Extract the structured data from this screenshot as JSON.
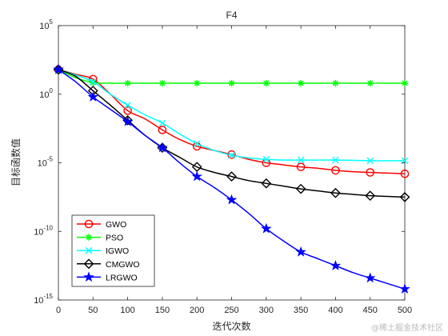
{
  "chart_data": {
    "type": "line",
    "title": "F4",
    "xlabel": "迭代次数",
    "ylabel": "目标函数值",
    "xlim": [
      0,
      500
    ],
    "ylim_log10": [
      -15,
      5
    ],
    "yscale": "log",
    "xticks": [
      0,
      50,
      100,
      150,
      200,
      250,
      300,
      350,
      400,
      450,
      500
    ],
    "yticks": [
      {
        "base": "10",
        "exp": "5",
        "value": 100000
      },
      {
        "base": "10",
        "exp": "0",
        "value": 1
      },
      {
        "base": "10",
        "exp": "-5",
        "value": 1e-05
      },
      {
        "base": "10",
        "exp": "-10",
        "value": 1e-10
      },
      {
        "base": "10",
        "exp": "-15",
        "value": 1e-15
      }
    ],
    "grid": false,
    "legend_position": "bottom-left",
    "series": [
      {
        "name": "GWO",
        "color": "#ff0000",
        "marker": "circle",
        "x": [
          0,
          25,
          50,
          75,
          100,
          125,
          150,
          175,
          200,
          225,
          250,
          275,
          300,
          325,
          350,
          375,
          400,
          425,
          450,
          475,
          500
        ],
        "log10_y": [
          1.8,
          1.45,
          1.1,
          0.0,
          -1.2,
          -1.8,
          -2.6,
          -3.3,
          -3.8,
          -4.1,
          -4.4,
          -4.75,
          -5.0,
          -5.15,
          -5.3,
          -5.4,
          -5.55,
          -5.65,
          -5.7,
          -5.75,
          -5.8
        ]
      },
      {
        "name": "PSO",
        "color": "#00ff00",
        "marker": "asterisk",
        "x": [
          0,
          25,
          50,
          75,
          100,
          125,
          150,
          175,
          200,
          225,
          250,
          275,
          300,
          325,
          350,
          375,
          400,
          425,
          450,
          475,
          500
        ],
        "log10_y": [
          1.8,
          1.2,
          0.85,
          0.8,
          0.8,
          0.8,
          0.8,
          0.8,
          0.8,
          0.8,
          0.8,
          0.8,
          0.8,
          0.8,
          0.8,
          0.8,
          0.8,
          0.8,
          0.8,
          0.8,
          0.8
        ]
      },
      {
        "name": "IGWO",
        "color": "#00ffff",
        "marker": "x",
        "x": [
          0,
          25,
          50,
          75,
          100,
          125,
          150,
          175,
          200,
          225,
          250,
          275,
          300,
          325,
          350,
          375,
          400,
          425,
          450,
          475,
          500
        ],
        "log10_y": [
          1.8,
          1.4,
          0.9,
          0.0,
          -0.8,
          -1.5,
          -2.1,
          -2.9,
          -3.6,
          -4.1,
          -4.45,
          -4.65,
          -4.75,
          -4.8,
          -4.8,
          -4.8,
          -4.8,
          -4.82,
          -4.85,
          -4.85,
          -4.85
        ]
      },
      {
        "name": "CMGWO",
        "color": "#000000",
        "marker": "diamond",
        "x": [
          0,
          25,
          50,
          75,
          100,
          125,
          150,
          175,
          200,
          225,
          250,
          275,
          300,
          325,
          350,
          375,
          400,
          425,
          450,
          475,
          500
        ],
        "log10_y": [
          1.8,
          1.3,
          0.25,
          -0.8,
          -1.9,
          -3.0,
          -3.9,
          -4.6,
          -5.3,
          -5.7,
          -6.0,
          -6.3,
          -6.5,
          -6.7,
          -6.9,
          -7.05,
          -7.2,
          -7.3,
          -7.4,
          -7.45,
          -7.5
        ]
      },
      {
        "name": "LRGWO",
        "color": "#0000ff",
        "marker": "star",
        "x": [
          0,
          25,
          50,
          75,
          100,
          125,
          150,
          175,
          200,
          225,
          250,
          275,
          300,
          325,
          350,
          375,
          400,
          425,
          450,
          475,
          500
        ],
        "log10_y": [
          1.8,
          0.9,
          -0.2,
          -1.1,
          -2.0,
          -3.0,
          -3.9,
          -5.0,
          -6.0,
          -6.8,
          -7.7,
          -8.7,
          -9.8,
          -10.7,
          -11.5,
          -12.0,
          -12.5,
          -13.0,
          -13.4,
          -13.8,
          -14.2
        ]
      }
    ]
  },
  "watermark": "@稀土掘金技术社区"
}
